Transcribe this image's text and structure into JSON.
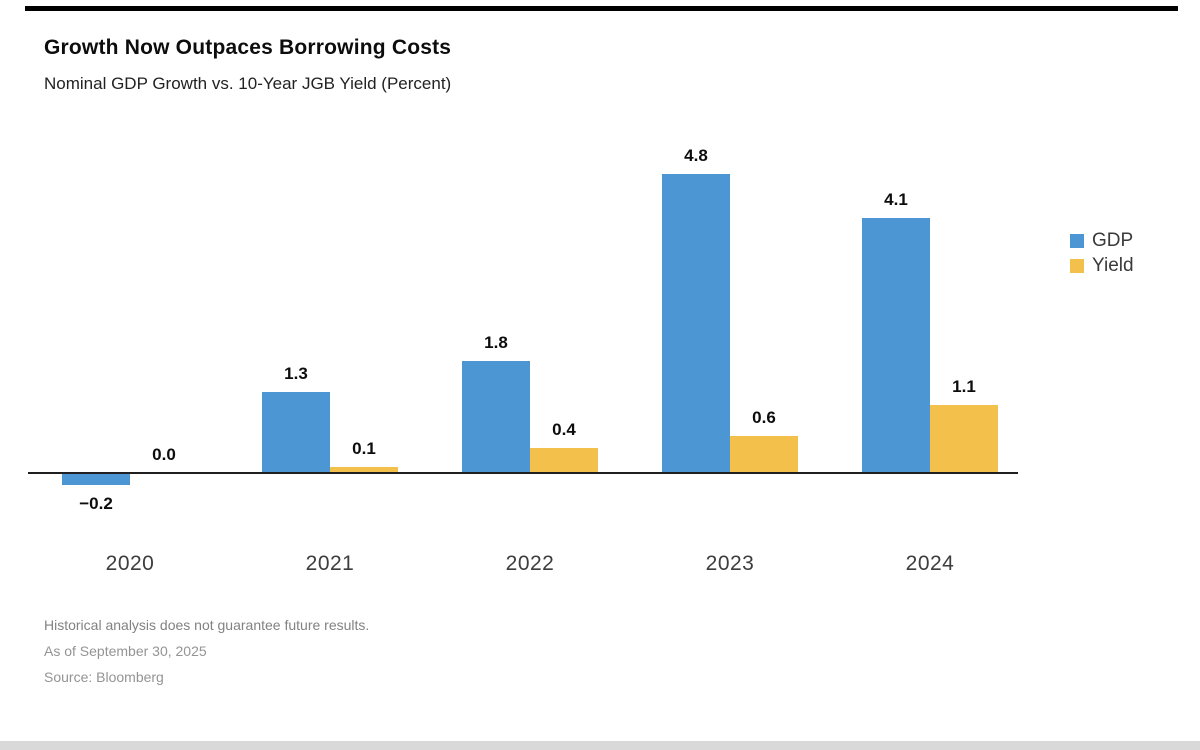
{
  "header": {
    "title": "Growth Now Outpaces Borrowing Costs",
    "subtitle": "Nominal GDP Growth vs. 10-Year JGB Yield (Percent)"
  },
  "chart_data": {
    "type": "bar",
    "categories": [
      "2020",
      "2021",
      "2022",
      "2023",
      "2024"
    ],
    "series": [
      {
        "name": "GDP",
        "color": "#4C97D3",
        "values": [
          -0.2,
          1.3,
          1.8,
          4.8,
          4.1
        ],
        "labels": [
          "−0.2",
          "1.3",
          "1.8",
          "4.8",
          "4.1"
        ]
      },
      {
        "name": "Yield",
        "color": "#F3C14B",
        "values": [
          0.0,
          0.1,
          0.4,
          0.6,
          1.1
        ],
        "labels": [
          "0.0",
          "0.1",
          "0.4",
          "0.6",
          "1.1"
        ]
      }
    ],
    "title": "Growth Now Outpaces Borrowing Costs",
    "subtitle": "Nominal GDP Growth vs. 10-Year JGB Yield (Percent)",
    "xlabel": "",
    "ylabel": "",
    "ylim": [
      -0.5,
      5.3
    ],
    "grid": false,
    "legend_position": "right",
    "value_labels_shown": true,
    "baseline_value": 0
  },
  "colors": {
    "gdp_blue": "#4C97D3",
    "yield_yellow": "#F3C14B",
    "axis": "#1f1f1f",
    "top_rule": "#000000",
    "bottom_strip": "#d9d9d9"
  },
  "footer": {
    "disclaimer": "Historical analysis does not guarantee future results.",
    "as_of": "As of September 30, 2025",
    "source": "Source: Bloomberg"
  }
}
